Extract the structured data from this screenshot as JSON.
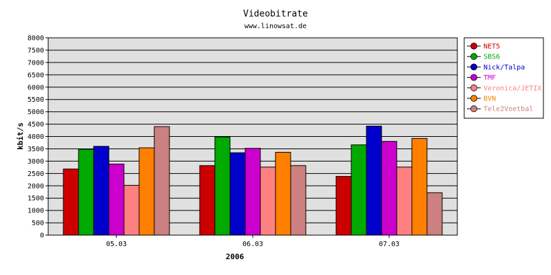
{
  "chart_data": {
    "type": "bar",
    "title": "Videobitrate",
    "subtitle": "www.linowsat.de",
    "xlabel": "2006",
    "ylabel": "kbit/s",
    "ylim": [
      0,
      8000
    ],
    "yticks": [
      0,
      500,
      1000,
      1500,
      2000,
      2500,
      3000,
      3500,
      4000,
      4500,
      5000,
      5500,
      6000,
      6500,
      7000,
      7500,
      8000
    ],
    "grid": true,
    "legend_position": "right",
    "categories": [
      "05.03",
      "06.03",
      "07.03"
    ],
    "series": [
      {
        "name": "NET5",
        "color": "#cc0000",
        "values": [
          2680,
          2820,
          2380
        ]
      },
      {
        "name": "SBS6",
        "color": "#00aa00",
        "values": [
          3480,
          3980,
          3660
        ]
      },
      {
        "name": "Nick/Talpa",
        "color": "#0000cc",
        "values": [
          3600,
          3340,
          4420
        ]
      },
      {
        "name": "TMF",
        "color": "#cc00cc",
        "values": [
          2880,
          3520,
          3800
        ]
      },
      {
        "name": "Veronica/JETIX",
        "color": "#ff8080",
        "values": [
          2020,
          2760,
          2760
        ]
      },
      {
        "name": "BVN",
        "color": "#ff8000",
        "values": [
          3540,
          3360,
          3920
        ]
      },
      {
        "name": "Tele2Voetbal",
        "color": "#cc8080",
        "values": [
          4400,
          2820,
          1720
        ]
      }
    ]
  }
}
